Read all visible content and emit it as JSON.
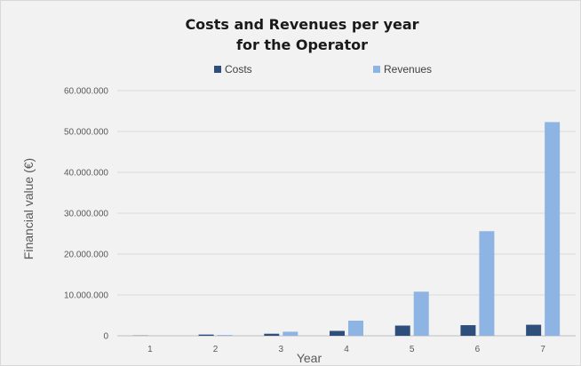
{
  "chart_data": {
    "type": "bar",
    "title": [
      "Costs and Revenues per year",
      "for the Operator"
    ],
    "xlabel": "Year",
    "ylabel": "Financial value (€)",
    "categories": [
      "1",
      "2",
      "3",
      "4",
      "5",
      "6",
      "7"
    ],
    "ylim": [
      0,
      60000000
    ],
    "yticks": [
      0,
      10000000,
      20000000,
      30000000,
      40000000,
      50000000,
      60000000
    ],
    "ytick_labels": [
      "0",
      "10.000.000",
      "20.000.000",
      "30.000.000",
      "40.000.000",
      "50.000.000",
      "60.000.000"
    ],
    "grid": true,
    "legend_position": "top",
    "series": [
      {
        "name": "Costs",
        "color": "#2e4f7c",
        "values": [
          50000,
          300000,
          500000,
          1200000,
          2500000,
          2600000,
          2700000
        ]
      },
      {
        "name": "Revenues",
        "color": "#8eb4e3",
        "values": [
          0,
          200000,
          1000000,
          3700000,
          10800000,
          25600000,
          52300000
        ]
      }
    ]
  }
}
